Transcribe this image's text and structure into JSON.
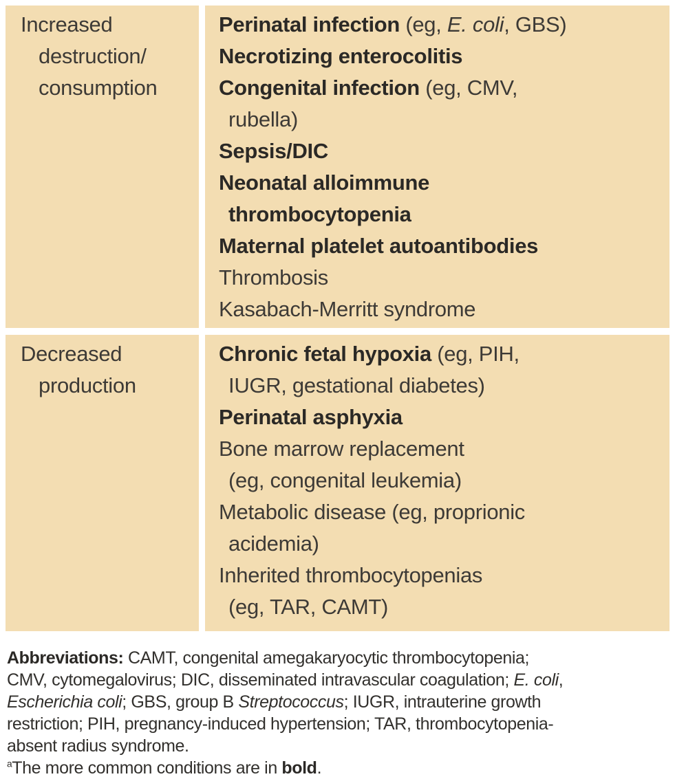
{
  "table": {
    "rows": [
      {
        "category_segments": [
          {
            "t": "Increased"
          },
          {
            "br": true
          },
          {
            "t": "destruction/"
          },
          {
            "br": true
          },
          {
            "t": "consumption"
          }
        ],
        "items": [
          {
            "segments": [
              {
                "t": "Perinatal infection",
                "b": true
              },
              {
                "t": " (eg, "
              },
              {
                "t": "E. coli",
                "i": true
              },
              {
                "t": ", GBS)"
              }
            ]
          },
          {
            "segments": [
              {
                "t": "Necrotizing enterocolitis",
                "b": true
              }
            ]
          },
          {
            "segments": [
              {
                "t": "Congenital infection",
                "b": true
              },
              {
                "t": " (eg, CMV,"
              },
              {
                "br": true
              },
              {
                "t": "rubella)"
              }
            ]
          },
          {
            "segments": [
              {
                "t": "Sepsis/DIC",
                "b": true
              }
            ]
          },
          {
            "segments": [
              {
                "t": "Neonatal alloimmune",
                "b": true
              },
              {
                "br": true
              },
              {
                "t": "thrombocytopenia",
                "b": true
              }
            ]
          },
          {
            "segments": [
              {
                "t": "Maternal platelet autoantibodies",
                "b": true
              }
            ]
          },
          {
            "segments": [
              {
                "t": "Thrombosis"
              }
            ]
          },
          {
            "segments": [
              {
                "t": "Kasabach-Merritt syndrome"
              }
            ]
          }
        ]
      },
      {
        "category_segments": [
          {
            "t": "Decreased"
          },
          {
            "br": true
          },
          {
            "t": "production"
          }
        ],
        "items": [
          {
            "segments": [
              {
                "t": "Chronic fetal hypoxia",
                "b": true
              },
              {
                "t": " (eg, PIH,"
              },
              {
                "br": true
              },
              {
                "t": "IUGR, gestational diabetes)"
              }
            ]
          },
          {
            "segments": [
              {
                "t": "Perinatal asphyxia",
                "b": true
              }
            ]
          },
          {
            "segments": [
              {
                "t": "Bone marrow replacement"
              },
              {
                "br": true
              },
              {
                "t": "(eg, congenital leukemia)"
              }
            ]
          },
          {
            "segments": [
              {
                "t": "Metabolic disease (eg, proprionic"
              },
              {
                "br": true
              },
              {
                "t": "acidemia)"
              }
            ]
          },
          {
            "segments": [
              {
                "t": "Inherited thrombocytopenias"
              },
              {
                "br": true
              },
              {
                "t": "(eg, TAR, CAMT)"
              }
            ]
          }
        ]
      }
    ]
  },
  "footnotes": {
    "abbreviations_segments": [
      {
        "t": "Abbreviations:",
        "b": true
      },
      {
        "t": " CAMT, congenital amegakaryocytic thrombocytopenia;"
      },
      {
        "br": true
      },
      {
        "t": "CMV, cytomegalovirus; DIC, disseminated intravascular coagulation; "
      },
      {
        "t": "E. coli",
        "i": true
      },
      {
        "t": ","
      },
      {
        "br": true
      },
      {
        "t": "Escherichia coli",
        "i": true
      },
      {
        "t": "; GBS, group B "
      },
      {
        "t": "Streptococcus",
        "i": true
      },
      {
        "t": "; IUGR, intrauterine growth"
      },
      {
        "br": true
      },
      {
        "t": "restriction; PIH, pregnancy-induced hypertension; TAR, thrombocytopenia-"
      },
      {
        "br": true
      },
      {
        "t": "absent radius syndrome."
      }
    ],
    "bold_note_segments": [
      {
        "t": "a",
        "sup": true
      },
      {
        "t": "The more common conditions are in "
      },
      {
        "t": "bold",
        "b": true
      },
      {
        "t": "."
      }
    ]
  },
  "colors": {
    "cell_bg": "#f3ddb2",
    "text": "#3d3a36",
    "bold_text": "#2b2926",
    "page_bg": "#ffffff"
  }
}
